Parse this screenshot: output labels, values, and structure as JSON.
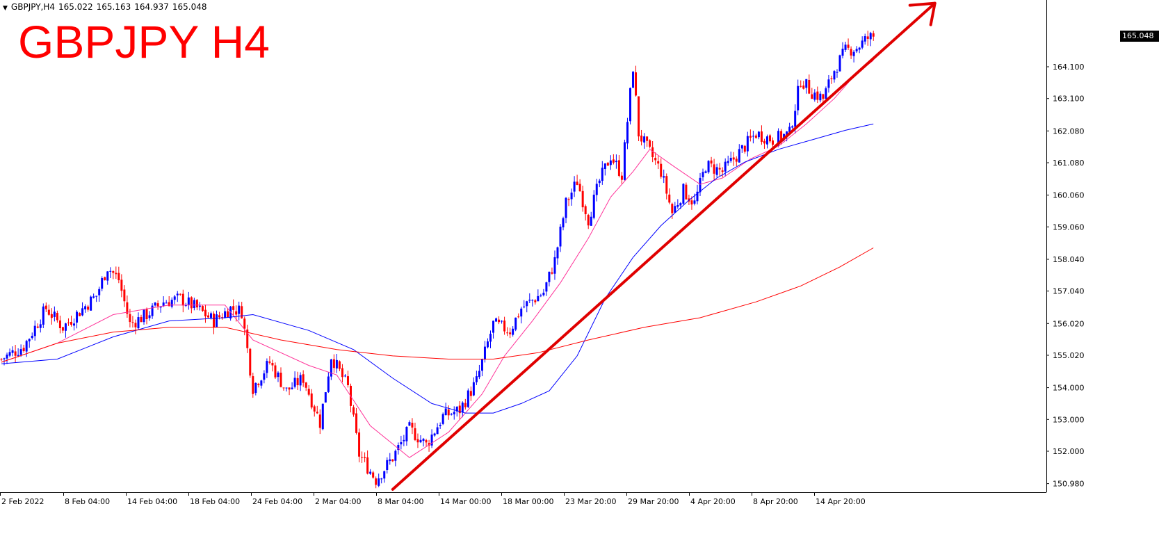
{
  "header": {
    "symbol": "GBPJPY,H4",
    "open": "165.022",
    "high": "165.163",
    "low": "164.937",
    "close": "165.048",
    "collapse_icon": "triangle-down-icon"
  },
  "overlay_title": "GBPJPY H4",
  "current_price_label": "165.048",
  "colors": {
    "bull": "#0000ff",
    "bear": "#ff0000",
    "ma_fast": "#ff3399",
    "ma_mid": "#0000ff",
    "ma_slow": "#ff0000",
    "trendline": "#e00000",
    "overlay_title": "#ff0000",
    "axis": "#000000",
    "background": "#ffffff"
  },
  "chart_data": {
    "type": "candlestick",
    "title": "GBPJPY H4",
    "symbol": "GBPJPY",
    "timeframe": "H4",
    "ylim": [
      150.7,
      166.2
    ],
    "y_ticks": [
      "165.048",
      "164.100",
      "163.100",
      "162.080",
      "161.080",
      "160.060",
      "159.060",
      "158.040",
      "157.040",
      "156.020",
      "155.020",
      "154.000",
      "153.000",
      "152.000",
      "150.980"
    ],
    "x_ticks": [
      "2 Feb 2022",
      "8 Feb 04:00",
      "14 Feb 04:00",
      "18 Feb 04:00",
      "24 Feb 04:00",
      "2 Mar 04:00",
      "8 Mar 04:00",
      "14 Mar 00:00",
      "18 Mar 00:00",
      "23 Mar 20:00",
      "29 Mar 20:00",
      "4 Apr 20:00",
      "8 Apr 20:00",
      "14 Apr 20:00"
    ],
    "close_trajectory": [
      [
        0,
        154.9
      ],
      [
        8,
        155.3
      ],
      [
        16,
        156.5
      ],
      [
        22,
        155.9
      ],
      [
        28,
        156.4
      ],
      [
        34,
        156.9
      ],
      [
        38,
        157.8
      ],
      [
        42,
        157.4
      ],
      [
        46,
        156.0
      ],
      [
        52,
        156.3
      ],
      [
        58,
        156.7
      ],
      [
        64,
        156.8
      ],
      [
        70,
        156.5
      ],
      [
        76,
        156.1
      ],
      [
        82,
        156.5
      ],
      [
        86,
        156.4
      ],
      [
        90,
        154.0
      ],
      [
        96,
        154.8
      ],
      [
        102,
        153.9
      ],
      [
        108,
        154.3
      ],
      [
        114,
        152.9
      ],
      [
        118,
        155.0
      ],
      [
        124,
        154.0
      ],
      [
        128,
        151.9
      ],
      [
        134,
        151.1
      ],
      [
        140,
        151.8
      ],
      [
        146,
        152.7
      ],
      [
        152,
        152.2
      ],
      [
        158,
        153.1
      ],
      [
        164,
        153.3
      ],
      [
        170,
        154.2
      ],
      [
        176,
        156.0
      ],
      [
        182,
        155.8
      ],
      [
        186,
        156.5
      ],
      [
        194,
        157.0
      ],
      [
        198,
        158.0
      ],
      [
        202,
        159.8
      ],
      [
        206,
        160.5
      ],
      [
        210,
        159.3
      ],
      [
        214,
        160.5
      ],
      [
        218,
        161.3
      ],
      [
        222,
        160.7
      ],
      [
        226,
        164.1
      ],
      [
        228,
        162.0
      ],
      [
        232,
        161.4
      ],
      [
        236,
        160.8
      ],
      [
        240,
        159.5
      ],
      [
        244,
        160.2
      ],
      [
        248,
        159.8
      ],
      [
        252,
        161.0
      ],
      [
        258,
        160.8
      ],
      [
        264,
        161.4
      ],
      [
        270,
        162.0
      ],
      [
        276,
        161.8
      ],
      [
        282,
        162.0
      ],
      [
        286,
        163.7
      ],
      [
        290,
        163.3
      ],
      [
        294,
        163.1
      ],
      [
        298,
        164.0
      ],
      [
        302,
        164.6
      ],
      [
        306,
        164.7
      ],
      [
        310,
        165.0
      ],
      [
        312,
        165.05
      ]
    ],
    "moving_averages": [
      {
        "kind": "fast",
        "points": [
          [
            0,
            154.8
          ],
          [
            20,
            155.4
          ],
          [
            40,
            156.3
          ],
          [
            60,
            156.6
          ],
          [
            80,
            156.6
          ],
          [
            90,
            155.5
          ],
          [
            110,
            154.7
          ],
          [
            120,
            154.4
          ],
          [
            132,
            152.8
          ],
          [
            146,
            151.8
          ],
          [
            160,
            152.6
          ],
          [
            172,
            153.8
          ],
          [
            180,
            155.0
          ],
          [
            190,
            156.1
          ],
          [
            200,
            157.3
          ],
          [
            210,
            158.7
          ],
          [
            218,
            160.0
          ],
          [
            226,
            160.8
          ],
          [
            232,
            161.5
          ],
          [
            240,
            161.0
          ],
          [
            250,
            160.4
          ],
          [
            258,
            160.6
          ],
          [
            268,
            161.2
          ],
          [
            278,
            161.6
          ],
          [
            288,
            162.3
          ],
          [
            298,
            163.1
          ],
          [
            306,
            163.9
          ],
          [
            312,
            164.3
          ]
        ]
      },
      {
        "kind": "medium",
        "points": [
          [
            0,
            154.75
          ],
          [
            20,
            154.9
          ],
          [
            40,
            155.6
          ],
          [
            60,
            156.1
          ],
          [
            80,
            156.2
          ],
          [
            90,
            156.3
          ],
          [
            110,
            155.8
          ],
          [
            126,
            155.2
          ],
          [
            140,
            154.3
          ],
          [
            154,
            153.5
          ],
          [
            166,
            153.2
          ],
          [
            176,
            153.2
          ],
          [
            186,
            153.5
          ],
          [
            196,
            153.9
          ],
          [
            206,
            155.0
          ],
          [
            216,
            156.8
          ],
          [
            226,
            158.1
          ],
          [
            236,
            159.1
          ],
          [
            246,
            159.9
          ],
          [
            256,
            160.6
          ],
          [
            266,
            161.1
          ],
          [
            278,
            161.5
          ],
          [
            290,
            161.8
          ],
          [
            302,
            162.1
          ],
          [
            312,
            162.3
          ]
        ]
      },
      {
        "kind": "slow",
        "points": [
          [
            0,
            154.8
          ],
          [
            20,
            155.4
          ],
          [
            40,
            155.75
          ],
          [
            60,
            155.9
          ],
          [
            80,
            155.9
          ],
          [
            100,
            155.5
          ],
          [
            120,
            155.2
          ],
          [
            140,
            155.0
          ],
          [
            160,
            154.9
          ],
          [
            176,
            154.9
          ],
          [
            192,
            155.1
          ],
          [
            210,
            155.5
          ],
          [
            230,
            155.9
          ],
          [
            250,
            156.2
          ],
          [
            270,
            156.7
          ],
          [
            286,
            157.2
          ],
          [
            300,
            157.8
          ],
          [
            312,
            158.4
          ]
        ]
      }
    ],
    "trendline": {
      "start": [
        140,
        150.8
      ],
      "end": [
        334,
        166.1
      ],
      "direction": "up"
    },
    "grid": false
  }
}
